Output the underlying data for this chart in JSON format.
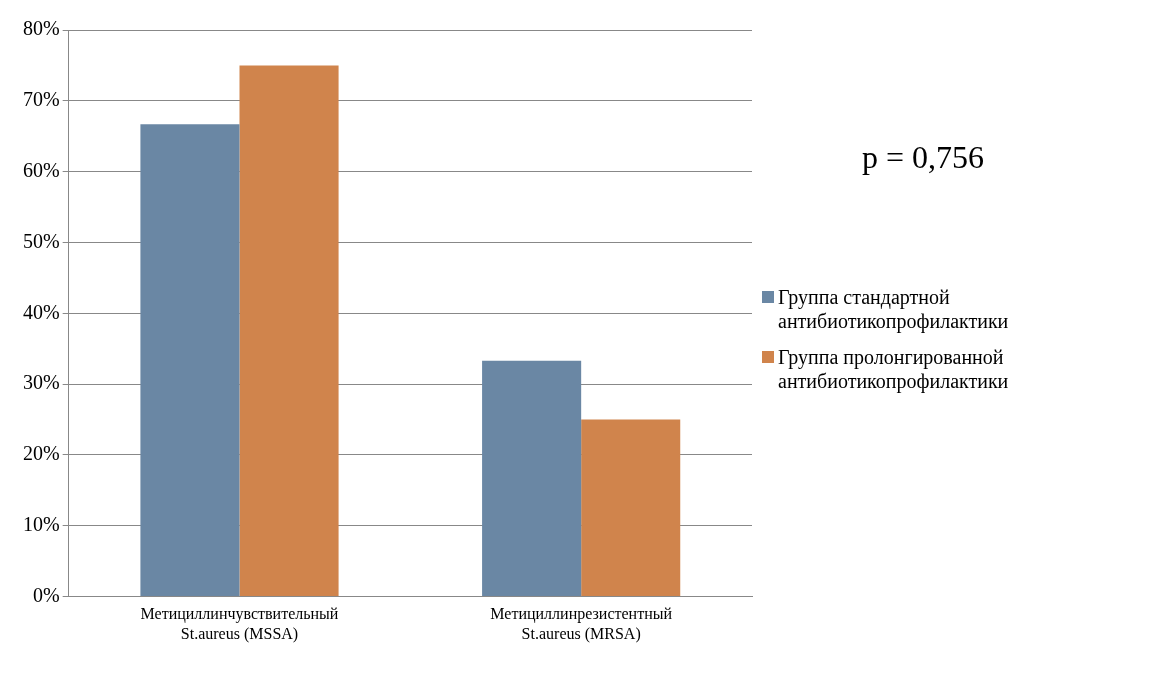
{
  "chart_data": {
    "type": "bar",
    "categories": [
      "Метициллинчувствительный St.aureus (MSSA)",
      "Метициллинрезистентный St.aureus (MRSA)"
    ],
    "series": [
      {
        "name": "Группа стандартной антибиотикопрофилактики",
        "color": "#6a87a4",
        "values": [
          66.7,
          33.3
        ]
      },
      {
        "name": "Группа пролонгированной антибиотикопрофилактики",
        "color": "#d0844c",
        "values": [
          75,
          25
        ]
      }
    ],
    "ylim": [
      0,
      80
    ],
    "yticks": [
      {
        "value": 0,
        "label": "0%"
      },
      {
        "value": 10,
        "label": "10%"
      },
      {
        "value": 20,
        "label": "20%"
      },
      {
        "value": 30,
        "label": "30%"
      },
      {
        "value": 40,
        "label": "40%"
      },
      {
        "value": 50,
        "label": "50%"
      },
      {
        "value": 60,
        "label": "60%"
      },
      {
        "value": 70,
        "label": "70%"
      },
      {
        "value": 80,
        "label": "80%"
      }
    ],
    "grid": "y",
    "legend": "right",
    "annotations": [
      "p = 0,756"
    ]
  }
}
